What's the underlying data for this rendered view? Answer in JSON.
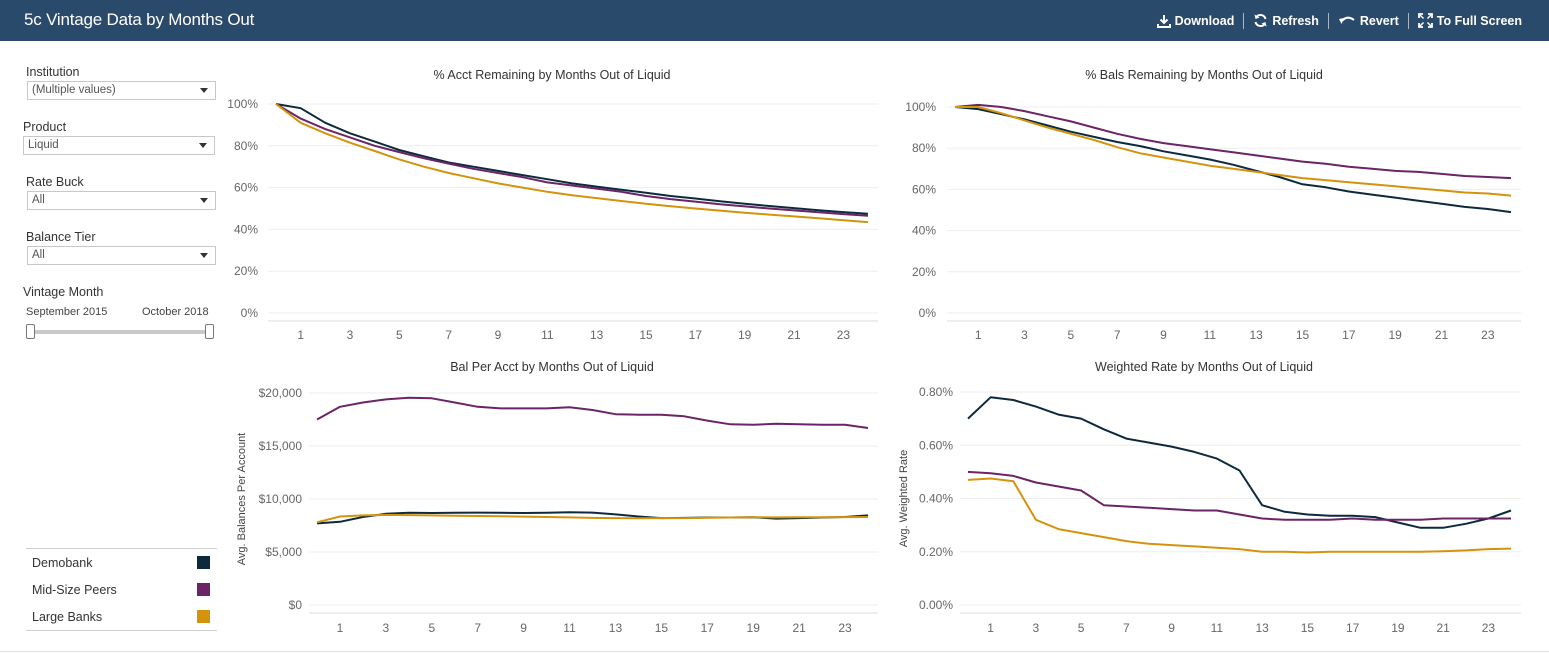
{
  "header": {
    "title": "5c Vintage Data by Months Out",
    "toolbar": {
      "download": "Download",
      "refresh": "Refresh",
      "revert": "Revert",
      "fullscreen": "To Full Screen"
    }
  },
  "filters": {
    "institution": {
      "label": "Institution",
      "value": "(Multiple values)"
    },
    "product": {
      "label": "Product",
      "value": "Liquid"
    },
    "rate_buck": {
      "label": "Rate Buck",
      "value": "All"
    },
    "balance_tier": {
      "label": "Balance Tier",
      "value": "All"
    },
    "vintage_month": {
      "label": "Vintage Month",
      "start": "September 2015",
      "end": "October 2018"
    }
  },
  "legend": [
    {
      "name": "Demobank",
      "color": "#0d2a3d"
    },
    {
      "name": "Mid-Size Peers",
      "color": "#6b2466"
    },
    {
      "name": "Large Banks",
      "color": "#d4930d"
    }
  ],
  "chart_data": [
    {
      "type": "line",
      "title": "% Acct Remaining by Months Out of  Liquid",
      "xlabel": "",
      "ylabel": "",
      "x": [
        0,
        1,
        2,
        3,
        4,
        5,
        6,
        7,
        8,
        9,
        10,
        11,
        12,
        13,
        14,
        15,
        16,
        17,
        18,
        19,
        20,
        21,
        22,
        23,
        24
      ],
      "xticks": [
        "1",
        "3",
        "5",
        "7",
        "9",
        "11",
        "13",
        "15",
        "17",
        "19",
        "21",
        "23"
      ],
      "xtick_values": [
        1,
        3,
        5,
        7,
        9,
        11,
        13,
        15,
        17,
        19,
        21,
        23
      ],
      "yticks": [
        "0%",
        "20%",
        "40%",
        "60%",
        "80%",
        "100%"
      ],
      "ytick_values": [
        0,
        20,
        40,
        60,
        80,
        100
      ],
      "ylim": [
        0,
        100
      ],
      "series": [
        {
          "name": "Demobank",
          "values": [
            100,
            98,
            91,
            86,
            82,
            78,
            75,
            72,
            70,
            68,
            66,
            64,
            62,
            60.5,
            59,
            57.5,
            56,
            54.8,
            53.5,
            52.3,
            51.2,
            50.2,
            49.2,
            48.3,
            47.5
          ]
        },
        {
          "name": "Mid-Size Peers",
          "values": [
            100,
            93,
            88,
            84,
            80,
            77,
            74,
            71.5,
            69,
            67,
            65,
            62.5,
            61,
            59.5,
            58,
            56,
            54.5,
            53.3,
            52,
            51,
            50,
            49.1,
            48.2,
            47.3,
            46.5
          ]
        },
        {
          "name": "Large Banks",
          "values": [
            100,
            91,
            86,
            81.5,
            77.5,
            73.5,
            70,
            67,
            64.5,
            62,
            60,
            58,
            56.3,
            55,
            53.6,
            52.3,
            51.1,
            50,
            49,
            48,
            47.1,
            46.2,
            45.3,
            44.4,
            43.5
          ]
        }
      ]
    },
    {
      "type": "line",
      "title": "% Bals Remaining by Months Out of Liquid",
      "xlabel": "",
      "ylabel": "",
      "x": [
        0,
        1,
        2,
        3,
        4,
        5,
        6,
        7,
        8,
        9,
        10,
        11,
        12,
        13,
        14,
        15,
        16,
        17,
        18,
        19,
        20,
        21,
        22,
        23,
        24
      ],
      "xticks": [
        "1",
        "3",
        "5",
        "7",
        "9",
        "11",
        "13",
        "15",
        "17",
        "19",
        "21",
        "23"
      ],
      "xtick_values": [
        1,
        3,
        5,
        7,
        9,
        11,
        13,
        15,
        17,
        19,
        21,
        23
      ],
      "yticks": [
        "0%",
        "20%",
        "40%",
        "60%",
        "80%",
        "100%"
      ],
      "ytick_values": [
        0,
        20,
        40,
        60,
        80,
        100
      ],
      "ylim": [
        0,
        100
      ],
      "series": [
        {
          "name": "Demobank",
          "values": [
            100,
            99,
            96.5,
            94,
            91,
            88,
            85.5,
            83,
            81,
            78.5,
            76.5,
            74.5,
            72,
            69,
            66,
            62.5,
            61,
            59,
            57.5,
            56,
            54.5,
            53,
            51.5,
            50.5,
            49
          ]
        },
        {
          "name": "Mid-Size Peers",
          "values": [
            100,
            101,
            100,
            98,
            95.5,
            93,
            90,
            87,
            84.5,
            82.5,
            81,
            79.5,
            78,
            76.5,
            75,
            73.5,
            72.5,
            71,
            70,
            69,
            68.5,
            67.5,
            66.5,
            66,
            65.5
          ]
        },
        {
          "name": "Large Banks",
          "values": [
            100,
            100,
            97,
            93.5,
            90,
            87,
            84,
            80.5,
            77.5,
            75.5,
            73.5,
            71.5,
            70,
            68.5,
            67,
            65.5,
            64.5,
            63.5,
            62.5,
            61.5,
            60.5,
            59.5,
            58.5,
            58,
            57
          ]
        }
      ]
    },
    {
      "type": "line",
      "title": "Bal Per Acct by Months Out of Liquid",
      "xlabel": "",
      "ylabel": "Avg. Balances Per Account",
      "x": [
        0,
        1,
        2,
        3,
        4,
        5,
        6,
        7,
        8,
        9,
        10,
        11,
        12,
        13,
        14,
        15,
        16,
        17,
        18,
        19,
        20,
        21,
        22,
        23,
        24
      ],
      "xticks": [
        "1",
        "3",
        "5",
        "7",
        "9",
        "11",
        "13",
        "15",
        "17",
        "19",
        "21",
        "23"
      ],
      "xtick_values": [
        1,
        3,
        5,
        7,
        9,
        11,
        13,
        15,
        17,
        19,
        21,
        23
      ],
      "yticks": [
        "$0",
        "$5,000",
        "$10,000",
        "$15,000",
        "$20,000"
      ],
      "ytick_values": [
        0,
        5000,
        10000,
        15000,
        20000
      ],
      "ylim": [
        0,
        20000
      ],
      "series": [
        {
          "name": "Demobank",
          "values": [
            7700,
            7850,
            8300,
            8600,
            8700,
            8680,
            8700,
            8720,
            8700,
            8680,
            8700,
            8750,
            8720,
            8550,
            8350,
            8200,
            8220,
            8250,
            8250,
            8280,
            8150,
            8200,
            8250,
            8300,
            8450
          ]
        },
        {
          "name": "Mid-Size Peers",
          "values": [
            17500,
            18700,
            19100,
            19400,
            19550,
            19500,
            19100,
            18700,
            18550,
            18550,
            18550,
            18650,
            18400,
            18000,
            17950,
            17950,
            17800,
            17400,
            17050,
            17000,
            17100,
            17050,
            17000,
            17000,
            16700
          ]
        },
        {
          "name": "Large Banks",
          "values": [
            7800,
            8350,
            8450,
            8500,
            8480,
            8450,
            8420,
            8400,
            8380,
            8340,
            8300,
            8260,
            8220,
            8200,
            8180,
            8200,
            8200,
            8230,
            8250,
            8280,
            8260,
            8270,
            8280,
            8290,
            8300
          ]
        }
      ]
    },
    {
      "type": "line",
      "title": "Weighted Rate by Months Out of Liquid",
      "xlabel": "",
      "ylabel": "Avg. Weighted Rate",
      "x": [
        0,
        1,
        2,
        3,
        4,
        5,
        6,
        7,
        8,
        9,
        10,
        11,
        12,
        13,
        14,
        15,
        16,
        17,
        18,
        19,
        20,
        21,
        22,
        23,
        24
      ],
      "xticks": [
        "1",
        "3",
        "5",
        "7",
        "9",
        "11",
        "13",
        "15",
        "17",
        "19",
        "21",
        "23"
      ],
      "xtick_values": [
        1,
        3,
        5,
        7,
        9,
        11,
        13,
        15,
        17,
        19,
        21,
        23
      ],
      "yticks": [
        "0.00%",
        "0.20%",
        "0.40%",
        "0.60%",
        "0.80%"
      ],
      "ytick_values": [
        0,
        0.2,
        0.4,
        0.6,
        0.8
      ],
      "ylim": [
        0,
        0.8
      ],
      "series": [
        {
          "name": "Demobank",
          "values": [
            0.7,
            0.78,
            0.77,
            0.745,
            0.715,
            0.7,
            0.66,
            0.625,
            0.61,
            0.595,
            0.575,
            0.55,
            0.505,
            0.375,
            0.35,
            0.34,
            0.335,
            0.335,
            0.33,
            0.31,
            0.29,
            0.29,
            0.305,
            0.325,
            0.355
          ]
        },
        {
          "name": "Mid-Size Peers",
          "values": [
            0.5,
            0.495,
            0.485,
            0.46,
            0.445,
            0.43,
            0.375,
            0.37,
            0.365,
            0.36,
            0.355,
            0.355,
            0.34,
            0.325,
            0.32,
            0.32,
            0.32,
            0.325,
            0.32,
            0.32,
            0.32,
            0.325,
            0.325,
            0.325,
            0.325
          ]
        },
        {
          "name": "Large Banks",
          "values": [
            0.47,
            0.475,
            0.465,
            0.32,
            0.285,
            0.27,
            0.255,
            0.24,
            0.23,
            0.225,
            0.22,
            0.215,
            0.21,
            0.2,
            0.2,
            0.197,
            0.2,
            0.2,
            0.2,
            0.2,
            0.2,
            0.202,
            0.205,
            0.21,
            0.212
          ]
        }
      ]
    }
  ]
}
